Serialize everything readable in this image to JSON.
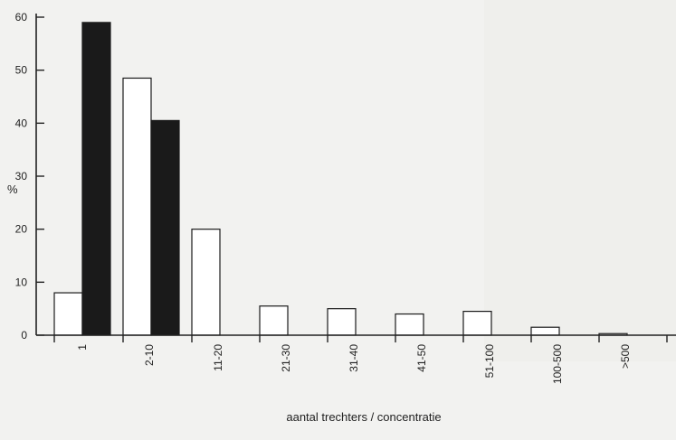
{
  "chart_data": {
    "type": "bar",
    "categories": [
      "1",
      "2-10",
      "11-20",
      "21-30",
      "31-40",
      "41-50",
      "51-100",
      "100-500",
      ">500"
    ],
    "series": [
      {
        "fill": "white",
        "values": [
          8,
          48.5,
          20,
          5.5,
          5,
          4,
          4.5,
          1.5,
          0.3
        ]
      },
      {
        "fill": "black",
        "values": [
          59,
          40.5,
          null,
          null,
          null,
          null,
          null,
          null,
          null
        ]
      }
    ],
    "y_ticks": [
      "0",
      "10",
      "20",
      "30",
      "40",
      "50",
      "60"
    ],
    "ylim": [
      0,
      60
    ],
    "ylabel": "%",
    "xlabel": "aantal trechters / concentratie",
    "grid": false,
    "colors": {
      "white_bar": "#ffffff",
      "black_bar": "#1a1a1a",
      "axis": "#222222"
    }
  }
}
